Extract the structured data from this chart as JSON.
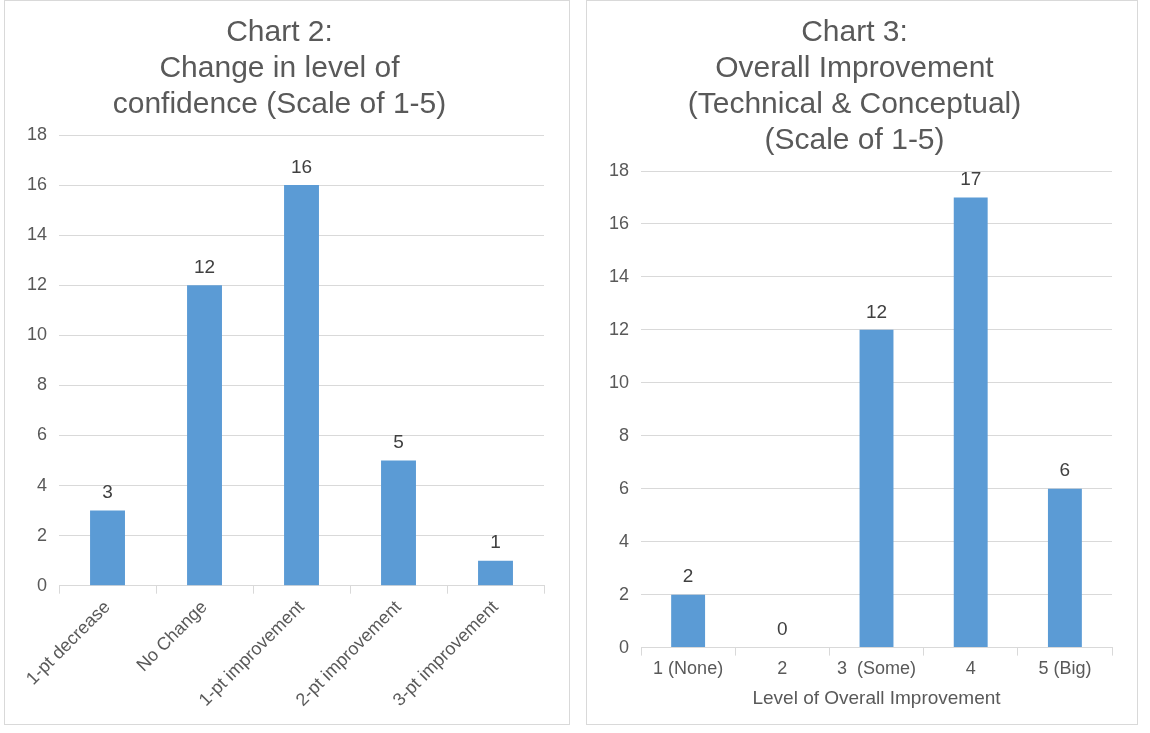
{
  "chart_data": [
    {
      "type": "bar",
      "title": "Chart 2:\nChange in level of\nconfidence (Scale of 1-5)",
      "categories": [
        "1-pt decrease",
        "No Change",
        "1-pt improvement",
        "2-pt improvement",
        "3-pt improvement"
      ],
      "values": [
        3,
        12,
        16,
        5,
        1
      ],
      "color": "#5b9bd5",
      "ylim": [
        0,
        18
      ],
      "yticks": [
        0,
        2,
        4,
        6,
        8,
        10,
        12,
        14,
        16,
        18
      ],
      "grid": "y",
      "data_labels": true
    },
    {
      "type": "bar",
      "title": "Chart 3:\nOverall Improvement\n(Technical & Conceptual)\n(Scale of 1-5)",
      "xlabel": "Level of Overall Improvement",
      "categories": [
        "1 (None)",
        "2",
        "3  (Some)",
        "4",
        "5 (Big)"
      ],
      "values": [
        2,
        0,
        12,
        17,
        6
      ],
      "color": "#5b9bd5",
      "ylim": [
        0,
        18
      ],
      "yticks": [
        0,
        2,
        4,
        6,
        8,
        10,
        12,
        14,
        16,
        18
      ],
      "grid": "y",
      "data_labels": true
    }
  ]
}
